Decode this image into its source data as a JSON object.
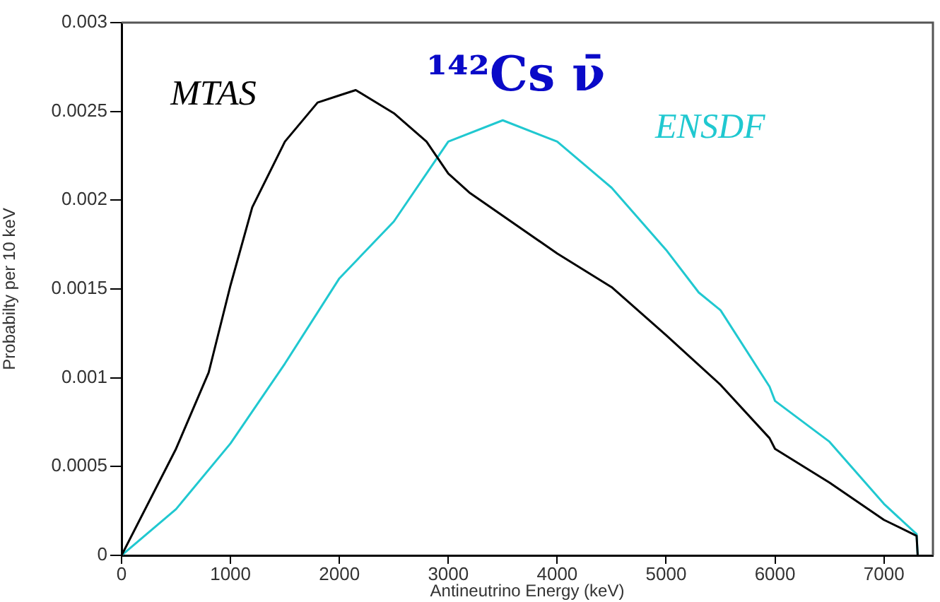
{
  "chart_data": {
    "type": "line",
    "title": "¹⁴²Cs ν̄",
    "xlabel": "Antineutrino Energy (keV)",
    "ylabel": "Probabilty per 10 keV",
    "xlim": [
      0,
      7450
    ],
    "xticks": [
      0,
      1000,
      2000,
      3000,
      4000,
      5000,
      6000,
      7000
    ],
    "ylim": [
      0,
      0.003
    ],
    "yticks": [
      0,
      0.0005,
      0.001,
      0.0015,
      0.002,
      0.0025,
      0.003
    ],
    "grid": false,
    "legend": false,
    "marker": "none",
    "line_style": "solid",
    "series": [
      {
        "name": "MTAS",
        "color": "#000000",
        "x": [
          0,
          500,
          800,
          1000,
          1200,
          1500,
          1800,
          2000,
          2150,
          2500,
          2800,
          3000,
          3200,
          4000,
          4500,
          5000,
          5500,
          5950,
          6000,
          6500,
          7000,
          7300,
          7310
        ],
        "values": [
          0,
          0.0006,
          0.00103,
          0.00152,
          0.00196,
          0.00233,
          0.00255,
          0.00259,
          0.00262,
          0.00249,
          0.00233,
          0.00215,
          0.00204,
          0.0017,
          0.00151,
          0.00124,
          0.00096,
          0.00066,
          0.0006,
          0.00041,
          0.0002,
          0.00011,
          0
        ]
      },
      {
        "name": "ENSDF",
        "color": "#20c8d0",
        "x": [
          0,
          500,
          1000,
          1500,
          2000,
          2500,
          3000,
          3500,
          4000,
          4500,
          5000,
          5300,
          5500,
          5950,
          6000,
          6500,
          7000,
          7300,
          7310
        ],
        "values": [
          0,
          0.00026,
          0.00063,
          0.00108,
          0.00156,
          0.00188,
          0.00233,
          0.00245,
          0.00233,
          0.00207,
          0.00172,
          0.00148,
          0.00138,
          0.00095,
          0.00087,
          0.00064,
          0.00029,
          0.00012,
          0
        ]
      }
    ]
  }
}
